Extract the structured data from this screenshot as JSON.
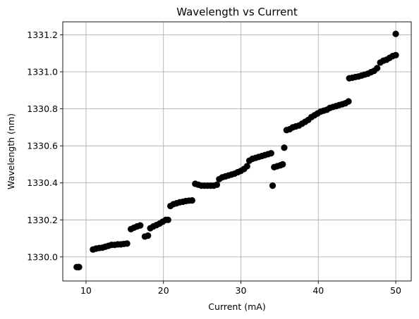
{
  "chart_data": {
    "type": "scatter",
    "title": "Wavelength vs Current",
    "xlabel": "Current (mA)",
    "ylabel": "Wavelength (nm)",
    "xlim": [
      7.0,
      52.0
    ],
    "ylim": [
      1329.87,
      1331.27
    ],
    "xticks": [
      10,
      20,
      30,
      40,
      50
    ],
    "xtick_labels": [
      "10",
      "20",
      "30",
      "40",
      "50"
    ],
    "yticks": [
      1330.0,
      1330.2,
      1330.4,
      1330.6,
      1330.8,
      1331.0,
      1331.2
    ],
    "ytick_labels": [
      "1330.0",
      "1330.2",
      "1330.4",
      "1330.6",
      "1330.8",
      "1331.0",
      "1331.2"
    ],
    "grid": true,
    "marker_color": "#000000",
    "series": [
      {
        "x": [
          8.8,
          9.0,
          9.1,
          10.9,
          11.3,
          11.7,
          12.1,
          12.5,
          12.9,
          13.3,
          13.7,
          14.1,
          14.5,
          14.9,
          15.3,
          15.8,
          16.2,
          16.6,
          17.0,
          17.6,
          18.0,
          18.3,
          18.7,
          19.1,
          19.5,
          19.9,
          20.3,
          20.6,
          20.9,
          21.3,
          21.7,
          22.1,
          22.5,
          22.9,
          23.3,
          23.7,
          24.1,
          24.5,
          24.9,
          25.3,
          25.7,
          26.1,
          26.5,
          26.9,
          27.2,
          27.6,
          28.0,
          28.4,
          28.8,
          29.2,
          29.6,
          30.0,
          30.4,
          30.8,
          31.1,
          31.5,
          31.9,
          32.3,
          32.7,
          33.1,
          33.5,
          33.9,
          34.1,
          34.3,
          34.7,
          35.1,
          35.4,
          35.6,
          35.9,
          36.3,
          36.7,
          37.1,
          37.5,
          37.9,
          38.3,
          38.7,
          39.1,
          39.5,
          39.9,
          40.3,
          40.7,
          41.1,
          41.5,
          41.9,
          42.3,
          42.7,
          43.1,
          43.5,
          43.9,
          44.0,
          44.4,
          44.8,
          45.2,
          45.6,
          46.0,
          46.4,
          46.8,
          47.2,
          47.6,
          48.0,
          48.4,
          48.8,
          49.2,
          49.6,
          50.0,
          50.0
        ],
        "y": [
          1329.945,
          1329.945,
          1329.945,
          1330.04,
          1330.045,
          1330.048,
          1330.05,
          1330.055,
          1330.06,
          1330.065,
          1330.065,
          1330.068,
          1330.068,
          1330.07,
          1330.072,
          1330.15,
          1330.158,
          1330.165,
          1330.17,
          1330.11,
          1330.115,
          1330.155,
          1330.165,
          1330.172,
          1330.18,
          1330.19,
          1330.2,
          1330.2,
          1330.275,
          1330.285,
          1330.29,
          1330.295,
          1330.298,
          1330.302,
          1330.304,
          1330.305,
          1330.395,
          1330.39,
          1330.385,
          1330.385,
          1330.385,
          1330.385,
          1330.385,
          1330.39,
          1330.42,
          1330.43,
          1330.435,
          1330.44,
          1330.445,
          1330.45,
          1330.458,
          1330.465,
          1330.475,
          1330.49,
          1330.52,
          1330.53,
          1330.535,
          1330.54,
          1330.545,
          1330.55,
          1330.555,
          1330.56,
          1330.385,
          1330.485,
          1330.49,
          1330.495,
          1330.5,
          1330.59,
          1330.685,
          1330.69,
          1330.7,
          1330.705,
          1330.71,
          1330.72,
          1330.73,
          1330.74,
          1330.755,
          1330.765,
          1330.775,
          1330.785,
          1330.79,
          1330.795,
          1330.805,
          1330.81,
          1330.815,
          1330.82,
          1330.825,
          1330.83,
          1330.84,
          1330.965,
          1330.968,
          1330.972,
          1330.975,
          1330.98,
          1330.985,
          1330.99,
          1330.998,
          1331.005,
          1331.02,
          1331.05,
          1331.06,
          1331.065,
          1331.075,
          1331.085,
          1331.09,
          1331.205
        ]
      }
    ]
  }
}
